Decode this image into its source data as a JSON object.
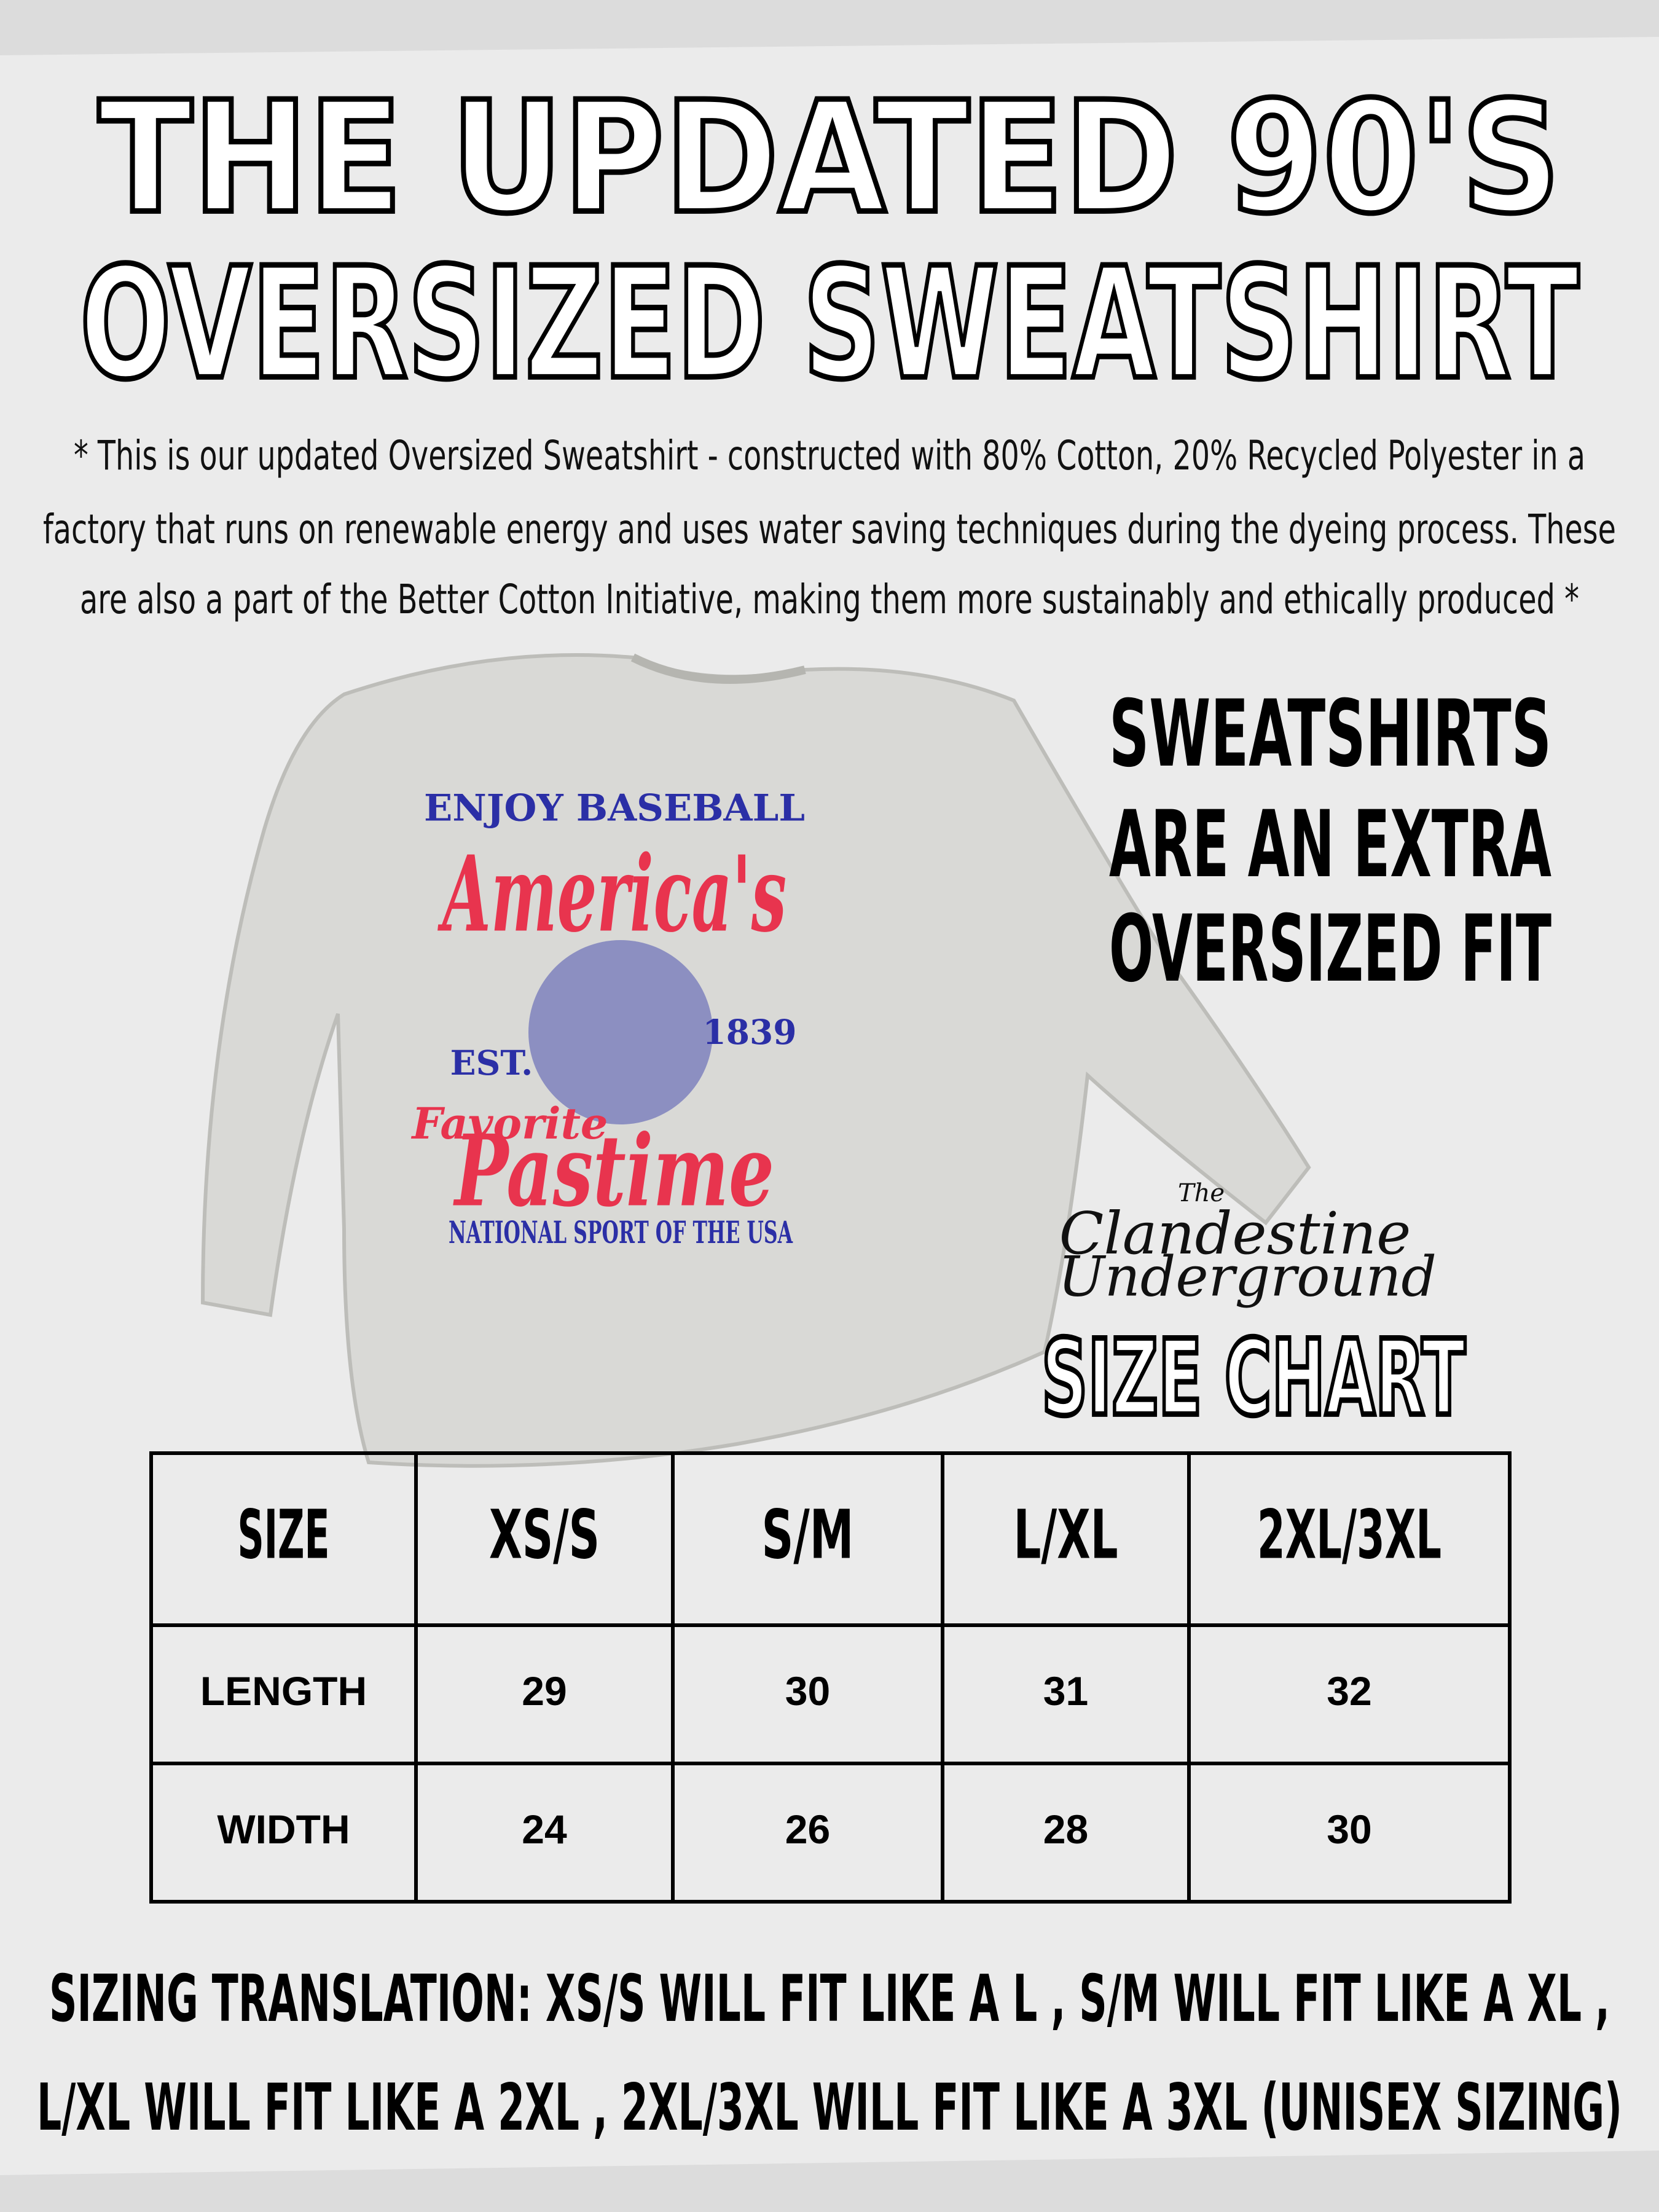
{
  "header": {
    "title_lines": [
      "THE UPDATED 90'S",
      "OVERSIZED SWEATSHIRT"
    ],
    "description_lines": [
      "* This is our updated Oversized Sweatshirt - constructed with 80% Cotton, 20% Recycled Polyester in a",
      "factory that runs on renewable energy and uses water saving techniques during the dyeing process. These",
      "are also a part of the Better Cotton Initiative, making them more sustainably and ethically produced *"
    ]
  },
  "product_graphic": {
    "texts": [
      "ENJOY BASEBALL",
      "America's",
      "EST.",
      "1839",
      "Favorite",
      "Pastime",
      "NATIONAL SPORT OF THE USA"
    ]
  },
  "fit_note": {
    "lines": [
      "SWEATSHIRTS",
      "ARE AN EXTRA",
      "OVERSIZED FIT"
    ]
  },
  "brand": {
    "lines": [
      "The",
      "Clandestine",
      "Underground"
    ]
  },
  "size_chart": {
    "title": "SIZE CHART",
    "table": {
      "header": [
        "SIZE",
        "XS/S",
        "S/M",
        "L/XL",
        "2XL/3XL"
      ],
      "rows": [
        [
          "LENGTH",
          "29",
          "30",
          "31",
          "32"
        ],
        [
          "WIDTH",
          "24",
          "26",
          "28",
          "30"
        ]
      ]
    }
  },
  "sizing_translation": {
    "lines": [
      "SIZING TRANSLATION: XS/S  WILL FIT LIKE A L , S/M  WILL FIT LIKE A XL ,",
      "L/XL WILL FIT LIKE A  2XL , 2XL/3XL WILL FIT LIKE A 3XL (UNISEX SIZING)"
    ]
  }
}
